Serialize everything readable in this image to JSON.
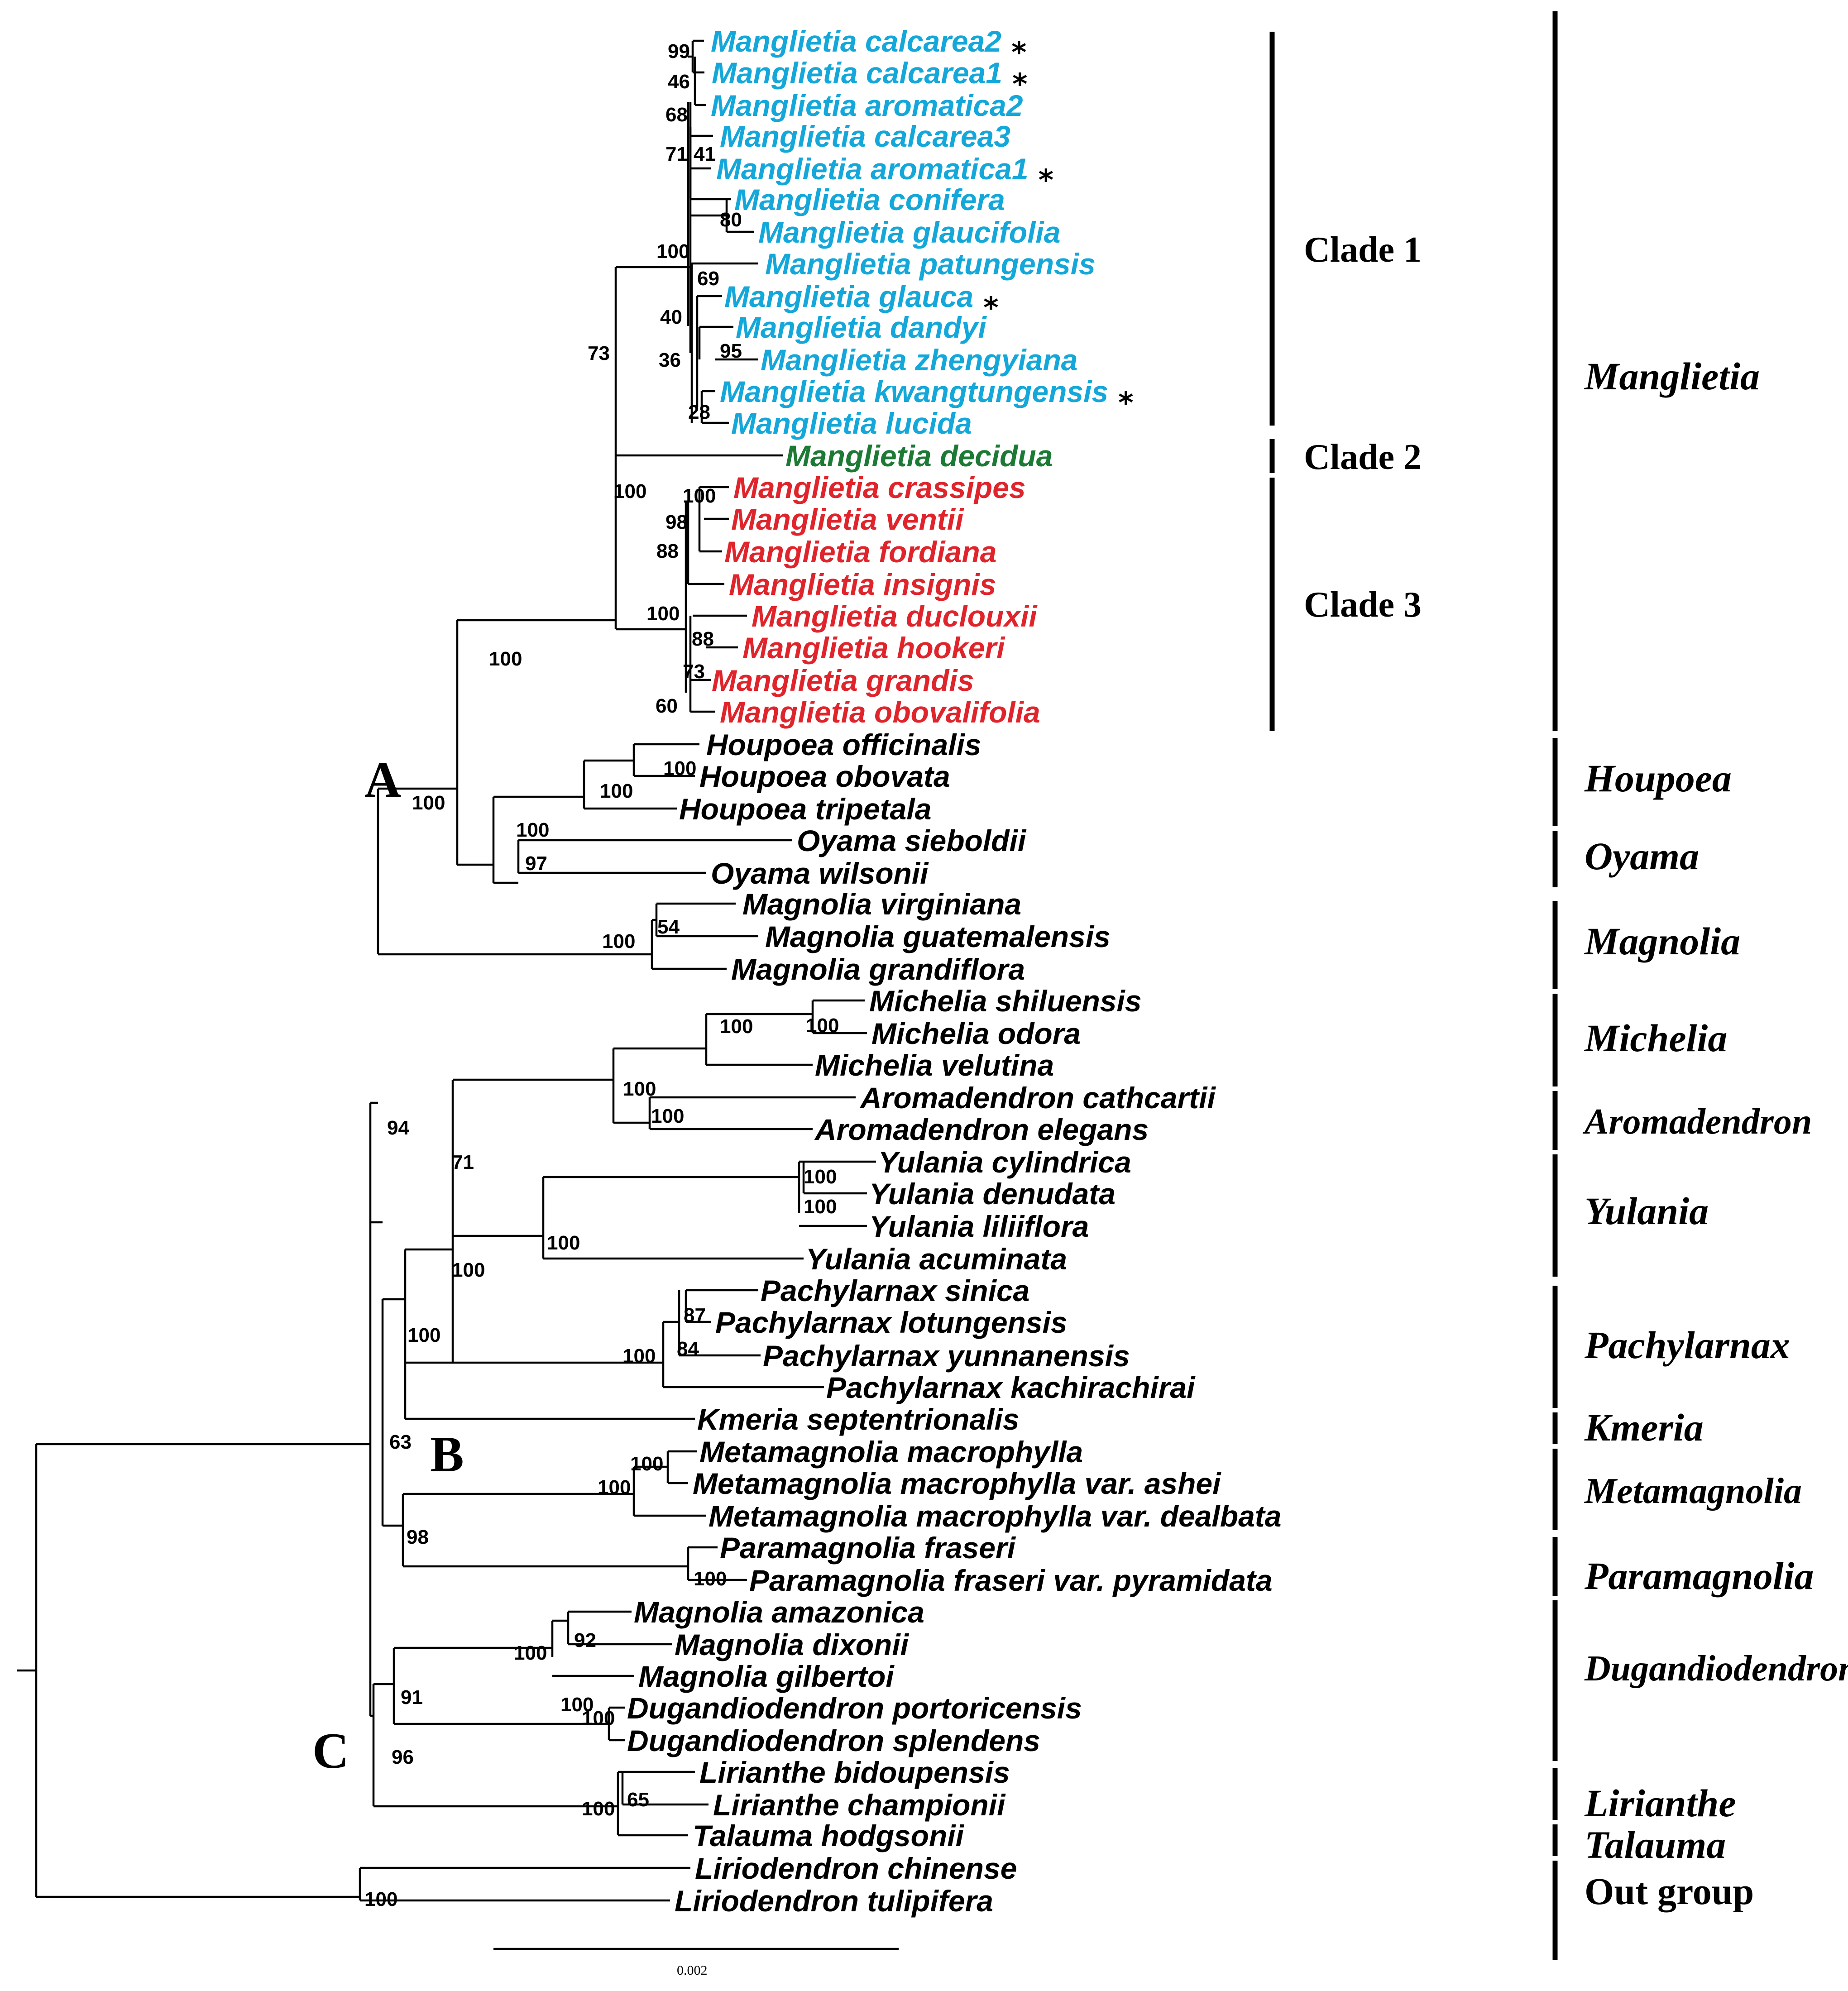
{
  "colors": {
    "clade1": "#14a7d9",
    "clade2": "#1c7a35",
    "clade3": "#e0242b",
    "other": "#000000"
  },
  "taxa": [
    {
      "label": "Manglietia calcarea2",
      "group": "clade1",
      "star": true
    },
    {
      "label": "Manglietia calcarea1",
      "group": "clade1",
      "star": true
    },
    {
      "label": "Manglietia aromatica2",
      "group": "clade1",
      "star": false
    },
    {
      "label": "Manglietia calcarea3",
      "group": "clade1",
      "star": false
    },
    {
      "label": "Manglietia aromatica1",
      "group": "clade1",
      "star": true
    },
    {
      "label": "Manglietia conifera",
      "group": "clade1",
      "star": false
    },
    {
      "label": "Manglietia glaucifolia",
      "group": "clade1",
      "star": false
    },
    {
      "label": "Manglietia patungensis",
      "group": "clade1",
      "star": false
    },
    {
      "label": "Manglietia glauca",
      "group": "clade1",
      "star": true
    },
    {
      "label": "Manglietia dandyi",
      "group": "clade1",
      "star": false
    },
    {
      "label": "Manglietia zhengyiana",
      "group": "clade1",
      "star": false
    },
    {
      "label": "Manglietia kwangtungensis",
      "group": "clade1",
      "star": true
    },
    {
      "label": "Manglietia lucida",
      "group": "clade1",
      "star": false
    },
    {
      "label": "Manglietia decidua",
      "group": "clade2",
      "star": false
    },
    {
      "label": "Manglietia crassipes",
      "group": "clade3",
      "star": false
    },
    {
      "label": "Manglietia ventii",
      "group": "clade3",
      "star": false
    },
    {
      "label": "Manglietia fordiana",
      "group": "clade3",
      "star": false
    },
    {
      "label": "Manglietia insignis",
      "group": "clade3",
      "star": false
    },
    {
      "label": "Manglietia duclouxii",
      "group": "clade3",
      "star": false
    },
    {
      "label": "Manglietia hookeri",
      "group": "clade3",
      "star": false
    },
    {
      "label": "Manglietia grandis",
      "group": "clade3",
      "star": false
    },
    {
      "label": "Manglietia obovalifolia",
      "group": "clade3",
      "star": false
    },
    {
      "label": "Houpoea officinalis",
      "group": "other",
      "star": false
    },
    {
      "label": "Houpoea obovata",
      "group": "other",
      "star": false
    },
    {
      "label": "Houpoea tripetala",
      "group": "other",
      "star": false
    },
    {
      "label": "Oyama sieboldii",
      "group": "other",
      "star": false
    },
    {
      "label": "Oyama wilsonii",
      "group": "other",
      "star": false
    },
    {
      "label": "Magnolia virginiana",
      "group": "other",
      "star": false
    },
    {
      "label": "Magnolia guatemalensis",
      "group": "other",
      "star": false
    },
    {
      "label": "Magnolia grandiflora",
      "group": "other",
      "star": false
    },
    {
      "label": "Michelia shiluensis",
      "group": "other",
      "star": false
    },
    {
      "label": "Michelia odora",
      "group": "other",
      "star": false
    },
    {
      "label": "Michelia velutina",
      "group": "other",
      "star": false
    },
    {
      "label": "Aromadendron cathcartii",
      "group": "other",
      "star": false
    },
    {
      "label": "Aromadendron elegans",
      "group": "other",
      "star": false
    },
    {
      "label": "Yulania cylindrica",
      "group": "other",
      "star": false
    },
    {
      "label": "Yulania denudata",
      "group": "other",
      "star": false
    },
    {
      "label": "Yulania liliiflora",
      "group": "other",
      "star": false
    },
    {
      "label": "Yulania acuminata",
      "group": "other",
      "star": false
    },
    {
      "label": "Pachylarnax sinica",
      "group": "other",
      "star": false
    },
    {
      "label": "Pachylarnax lotungensis",
      "group": "other",
      "star": false
    },
    {
      "label": "Pachylarnax yunnanensis",
      "group": "other",
      "star": false
    },
    {
      "label": "Pachylarnax kachirachirai",
      "group": "other",
      "star": false
    },
    {
      "label": "Kmeria septentrionalis",
      "group": "other",
      "star": false
    },
    {
      "label": "Metamagnolia macrophylla",
      "group": "other",
      "star": false
    },
    {
      "label": "Metamagnolia macrophylla var. ashei",
      "group": "other",
      "star": false
    },
    {
      "label": "Metamagnolia macrophylla var. dealbata",
      "group": "other",
      "star": false
    },
    {
      "label": "Paramagnolia fraseri",
      "group": "other",
      "star": false
    },
    {
      "label": "Paramagnolia fraseri var. pyramidata",
      "group": "other",
      "star": false
    },
    {
      "label": "Magnolia amazonica",
      "group": "other",
      "star": false
    },
    {
      "label": "Magnolia dixonii",
      "group": "other",
      "star": false
    },
    {
      "label": "Magnolia gilbertoi",
      "group": "other",
      "star": false
    },
    {
      "label": "Dugandiodendron portoricensis",
      "group": "other",
      "star": false
    },
    {
      "label": "Dugandiodendron splendens",
      "group": "other",
      "star": false
    },
    {
      "label": "Lirianthe bidoupensis",
      "group": "other",
      "star": false
    },
    {
      "label": "Lirianthe championii",
      "group": "other",
      "star": false
    },
    {
      "label": "Talauma hodgsonii",
      "group": "other",
      "star": false
    },
    {
      "label": "Liriodendron chinense",
      "group": "other",
      "star": false
    },
    {
      "label": "Liriodendron tulipifera",
      "group": "other",
      "star": false
    }
  ],
  "support_values": [
    "99",
    "46",
    "68",
    "71",
    "41",
    "80",
    "100",
    "69",
    "40",
    "95",
    "36",
    "28",
    "73",
    "100",
    "100",
    "98",
    "88",
    "100",
    "88",
    "73",
    "60",
    "100",
    "100",
    "100",
    "100",
    "100",
    "97",
    "100",
    "54",
    "100",
    "100",
    "100",
    "100",
    "94",
    "71",
    "100",
    "100",
    "100",
    "100",
    "87",
    "84",
    "100",
    "100",
    "63",
    "100",
    "100",
    "98",
    "100",
    "100",
    "92",
    "100",
    "91",
    "96",
    "100",
    "65",
    "100",
    "100"
  ],
  "node_labels": [
    "A",
    "B",
    "C"
  ],
  "clades": [
    "Clade 1",
    "Clade 2",
    "Clade 3"
  ],
  "genera": [
    "Manglietia",
    "Houpoea",
    "Oyama",
    "Magnolia",
    "Michelia",
    "Aromadendron",
    "Yulania",
    "Pachylarnax",
    "Kmeria",
    "Metamagnolia",
    "Paramagnolia",
    "Dugandiodendron",
    "Lirianthe",
    "Talauma",
    "Out group"
  ],
  "scale_bar": "0.002",
  "star_symbol": "*"
}
